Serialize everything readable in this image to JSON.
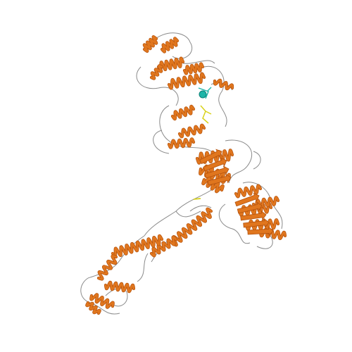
{
  "image": {
    "subject": "protein-ribbon-structure",
    "background": "#ffffff"
  },
  "colors": {
    "helix": "#e0761e",
    "helix_dark": "#b4520d",
    "coil": "#8a8a8a",
    "ligand_cyan": "#1db5a8",
    "ligand_yellow": "#d8d21a"
  }
}
